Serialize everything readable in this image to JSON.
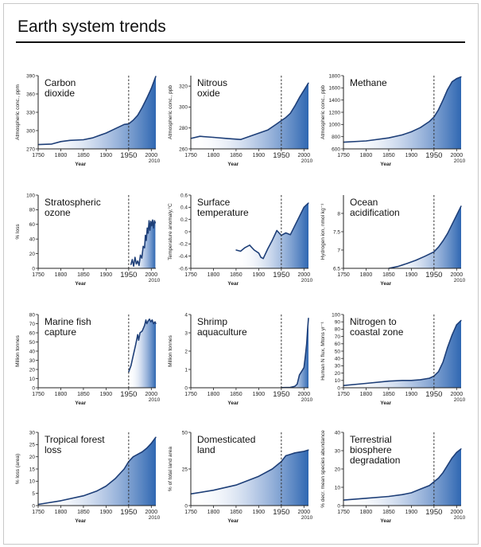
{
  "page": {
    "title": "Earth system trends"
  },
  "chart_data": [
    {
      "type": "area",
      "title": "Carbon dioxide",
      "ylabel": "Atmospheric conc., ppm",
      "xlabel": "Year",
      "xlim": [
        1750,
        2010
      ],
      "ylim": [
        270,
        390
      ],
      "xticks": [
        1750,
        1800,
        1850,
        1900,
        1950,
        2000
      ],
      "yticks": [
        270,
        300,
        330,
        360,
        390
      ],
      "x": [
        1750,
        1780,
        1800,
        1820,
        1850,
        1870,
        1900,
        1920,
        1940,
        1950,
        1960,
        1970,
        1980,
        1990,
        2000,
        2010
      ],
      "y": [
        277,
        278,
        282,
        284,
        285,
        288,
        296,
        303,
        310,
        311,
        317,
        325,
        338,
        353,
        369,
        389
      ]
    },
    {
      "type": "area",
      "title": "Nitrous oxide",
      "ylabel": "Atmospheric conc., ppb",
      "xlabel": "Year",
      "xlim": [
        1750,
        2010
      ],
      "ylim": [
        260,
        330
      ],
      "xticks": [
        1750,
        1800,
        1850,
        1900,
        1950,
        2000
      ],
      "yticks": [
        260,
        280,
        300,
        320
      ],
      "x": [
        1750,
        1770,
        1800,
        1830,
        1860,
        1880,
        1900,
        1920,
        1940,
        1950,
        1960,
        1970,
        1980,
        1990,
        2000,
        2010
      ],
      "y": [
        270,
        272,
        271,
        270,
        269,
        272,
        275,
        278,
        284,
        287,
        290,
        294,
        301,
        309,
        316,
        323
      ]
    },
    {
      "type": "area",
      "title": "Methane",
      "ylabel": "Atmospheric conc., ppb",
      "xlabel": "Year",
      "xlim": [
        1750,
        2010
      ],
      "ylim": [
        600,
        1800
      ],
      "xticks": [
        1750,
        1800,
        1850,
        1900,
        1950,
        2000
      ],
      "yticks": [
        600,
        800,
        1000,
        1200,
        1400,
        1600,
        1800
      ],
      "x": [
        1750,
        1800,
        1850,
        1880,
        1900,
        1920,
        1940,
        1950,
        1960,
        1970,
        1980,
        1990,
        2000,
        2010
      ],
      "y": [
        710,
        730,
        780,
        830,
        880,
        950,
        1050,
        1120,
        1240,
        1400,
        1570,
        1700,
        1750,
        1780
      ]
    },
    {
      "type": "area",
      "title": "Stratospheric ozone",
      "ylabel": "% loss",
      "xlabel": "Year",
      "xlim": [
        1750,
        2010
      ],
      "ylim": [
        0,
        100
      ],
      "xticks": [
        1750,
        1800,
        1850,
        1900,
        1950,
        2000
      ],
      "yticks": [
        0,
        20,
        40,
        60,
        80,
        100
      ],
      "x": [
        1955,
        1958,
        1961,
        1964,
        1967,
        1970,
        1973,
        1976,
        1979,
        1982,
        1985,
        1987,
        1989,
        1991,
        1993,
        1995,
        1997,
        1999,
        2001,
        2003,
        2005,
        2007,
        2009
      ],
      "y": [
        5,
        12,
        3,
        15,
        6,
        10,
        4,
        18,
        14,
        30,
        28,
        45,
        38,
        55,
        48,
        65,
        52,
        64,
        58,
        66,
        55,
        65,
        62
      ]
    },
    {
      "type": "area",
      "title": "Surface temperature",
      "ylabel": "Temperature anomaly,°C",
      "xlabel": "Year",
      "xlim": [
        1750,
        2010
      ],
      "ylim": [
        -0.6,
        0.6
      ],
      "xticks": [
        1750,
        1800,
        1850,
        1900,
        1950,
        2000
      ],
      "yticks": [
        -0.6,
        -0.4,
        -0.2,
        0,
        0.2,
        0.4,
        0.6
      ],
      "x": [
        1850,
        1860,
        1870,
        1880,
        1890,
        1900,
        1905,
        1910,
        1920,
        1930,
        1940,
        1945,
        1950,
        1960,
        1970,
        1980,
        1990,
        2000,
        2010
      ],
      "y": [
        -0.3,
        -0.32,
        -0.26,
        -0.22,
        -0.3,
        -0.35,
        -0.42,
        -0.44,
        -0.28,
        -0.14,
        0.02,
        -0.02,
        -0.06,
        -0.02,
        -0.05,
        0.1,
        0.25,
        0.4,
        0.47
      ]
    },
    {
      "type": "area",
      "title": "Ocean acidification",
      "ylabel": "Hydrogen ion, nmol kg⁻¹",
      "xlabel": "Year",
      "xlim": [
        1750,
        2010
      ],
      "ylim": [
        6.5,
        8.5
      ],
      "xticks": [
        1750,
        1800,
        1850,
        1900,
        1950,
        2000
      ],
      "yticks": [
        6.5,
        7.0,
        7.5,
        8.0
      ],
      "x": [
        1850,
        1870,
        1890,
        1910,
        1930,
        1950,
        1960,
        1970,
        1980,
        1990,
        2000,
        2010
      ],
      "y": [
        6.5,
        6.55,
        6.63,
        6.72,
        6.83,
        6.95,
        7.08,
        7.25,
        7.45,
        7.7,
        7.95,
        8.2
      ]
    },
    {
      "type": "area",
      "title": "Marine fish capture",
      "ylabel": "Million tonnes",
      "xlabel": "Year",
      "xlim": [
        1750,
        2010
      ],
      "ylim": [
        0,
        80
      ],
      "xticks": [
        1750,
        1800,
        1850,
        1900,
        1950,
        2000
      ],
      "yticks": [
        0,
        10,
        20,
        30,
        40,
        50,
        60,
        70,
        80
      ],
      "x": [
        1950,
        1955,
        1960,
        1965,
        1970,
        1972,
        1975,
        1980,
        1985,
        1988,
        1990,
        1993,
        1996,
        1999,
        2002,
        2005,
        2008,
        2010
      ],
      "y": [
        17,
        24,
        35,
        46,
        58,
        52,
        60,
        62,
        68,
        74,
        70,
        73,
        75,
        72,
        74,
        70,
        72,
        70
      ]
    },
    {
      "type": "area",
      "title": "Shrimp aquaculture",
      "ylabel": "Million tonnes",
      "xlabel": "Year",
      "xlim": [
        1750,
        2010
      ],
      "ylim": [
        0,
        4
      ],
      "xticks": [
        1750,
        1800,
        1850,
        1900,
        1950,
        2000
      ],
      "yticks": [
        0,
        1,
        2,
        3,
        4
      ],
      "x": [
        1950,
        1970,
        1980,
        1985,
        1990,
        1995,
        2000,
        2003,
        2006,
        2008,
        2010
      ],
      "y": [
        0.01,
        0.02,
        0.08,
        0.2,
        0.7,
        0.9,
        1.1,
        1.7,
        2.4,
        3.2,
        3.8
      ]
    },
    {
      "type": "area",
      "title": "Nitrogen to coastal zone",
      "ylabel": "Human N flux, Mtons yr⁻¹",
      "xlabel": "Year",
      "xlim": [
        1750,
        2010
      ],
      "ylim": [
        0,
        100
      ],
      "xticks": [
        1750,
        1800,
        1850,
        1900,
        1950,
        2000
      ],
      "yticks": [
        0,
        10,
        20,
        30,
        40,
        50,
        60,
        70,
        80,
        90,
        100
      ],
      "x": [
        1750,
        1800,
        1850,
        1880,
        1900,
        1920,
        1940,
        1950,
        1960,
        1970,
        1980,
        1990,
        2000,
        2010
      ],
      "y": [
        3,
        6,
        9,
        10,
        10,
        11,
        13,
        16,
        22,
        35,
        55,
        72,
        86,
        92
      ]
    },
    {
      "type": "area",
      "title": "Tropical forest loss",
      "ylabel": "% loss (area)",
      "xlabel": "Year",
      "xlim": [
        1750,
        2010
      ],
      "ylim": [
        0,
        30
      ],
      "xticks": [
        1750,
        1800,
        1850,
        1900,
        1950,
        2000
      ],
      "yticks": [
        0,
        5,
        10,
        15,
        20,
        25,
        30
      ],
      "x": [
        1750,
        1800,
        1850,
        1880,
        1900,
        1920,
        1940,
        1950,
        1960,
        1970,
        1980,
        1990,
        2000,
        2010
      ],
      "y": [
        0.5,
        2,
        4,
        6,
        8,
        11,
        15,
        18,
        20,
        21,
        22,
        23.5,
        25.5,
        28
      ]
    },
    {
      "type": "area",
      "title": "Domesticated land",
      "ylabel": "% of total land area",
      "xlabel": "Year",
      "xlim": [
        1750,
        2010
      ],
      "ylim": [
        0,
        50
      ],
      "xticks": [
        1750,
        1800,
        1850,
        1900,
        1950,
        2000
      ],
      "yticks": [
        0,
        25,
        50
      ],
      "x": [
        1750,
        1800,
        1850,
        1900,
        1930,
        1950,
        1960,
        1970,
        1980,
        1990,
        2000,
        2010
      ],
      "y": [
        8,
        10.5,
        14,
        20,
        25,
        30,
        34,
        35,
        36,
        36.5,
        37,
        38
      ]
    },
    {
      "type": "area",
      "title": "Terrestrial biosphere degradation",
      "ylabel": "% decr. mean species abundance",
      "xlabel": "Year",
      "xlim": [
        1750,
        2010
      ],
      "ylim": [
        0,
        40
      ],
      "xticks": [
        1750,
        1800,
        1850,
        1900,
        1950,
        2000
      ],
      "yticks": [
        0,
        10,
        20,
        30,
        40
      ],
      "x": [
        1750,
        1800,
        1850,
        1880,
        1900,
        1920,
        1940,
        1950,
        1960,
        1970,
        1980,
        1990,
        2000,
        2010
      ],
      "y": [
        3,
        4,
        5,
        6,
        7,
        9,
        11,
        13,
        15,
        18,
        22,
        26,
        29,
        31
      ]
    }
  ],
  "labels": {
    "mark_1950": "1950",
    "mark_2010": "2010"
  },
  "colors": {
    "fill_light": "#ffffff",
    "fill_dark": "#2f67b2",
    "line": "#1e3f78",
    "axis": "#222222"
  }
}
